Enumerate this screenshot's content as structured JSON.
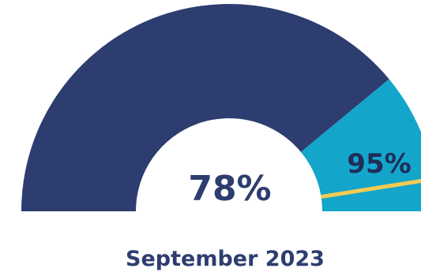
{
  "chart_data": {
    "type": "gauge",
    "value_percent": 78,
    "target_percent": 95,
    "range": [
      0,
      100
    ],
    "value_label": "78%",
    "target_label": "95%",
    "caption": "September 2023"
  },
  "colors": {
    "value_fill": "#2d3d70",
    "remainder_fill": "#14a5cb",
    "target_marker": "#f4cb52",
    "value_text": "#2d3d70",
    "target_text": "#1f2d58",
    "caption_text": "#2d3d70",
    "background": "#ffffff"
  }
}
